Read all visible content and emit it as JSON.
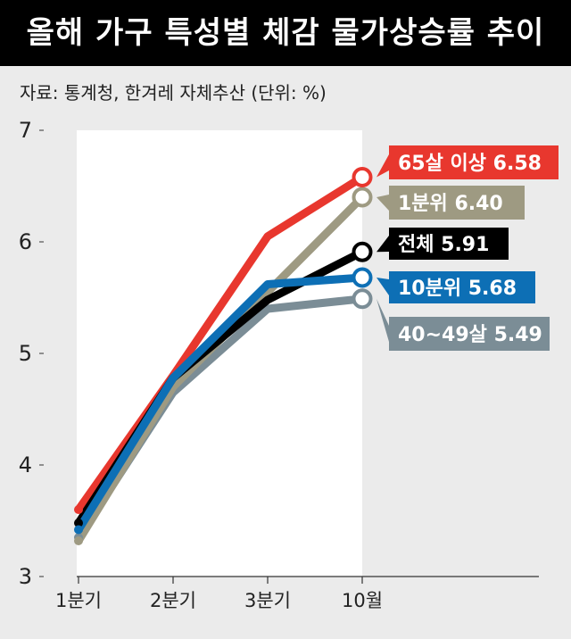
{
  "title": "올해 가구 특성별 체감 물가상승률 추이",
  "source": "자료: 통계청, 한겨레 자체추산  (단위: %)",
  "chart_data": {
    "type": "line",
    "title": "올해 가구 특성별 체감 물가상승률 추이",
    "unit": "%",
    "categories": [
      "1분기",
      "2분기",
      "3분기",
      "10월"
    ],
    "ylim": [
      3,
      7
    ],
    "yticks": [
      "3",
      "4",
      "5",
      "6",
      "7"
    ],
    "grid": false,
    "series": [
      {
        "name": "40~49살",
        "values": [
          3.35,
          4.65,
          5.4,
          5.49
        ],
        "color": "#7b8d96",
        "label": "40~49살  5.49",
        "label_text_color": "#ffffff"
      },
      {
        "name": "1분위",
        "values": [
          3.32,
          4.7,
          5.55,
          6.4
        ],
        "color": "#9e9a82",
        "label": "1분위 6.40",
        "label_text_color": "#ffffff"
      },
      {
        "name": "65살 이상",
        "values": [
          3.6,
          4.8,
          6.05,
          6.58
        ],
        "color": "#e8372e",
        "label": "65살 이상 6.58",
        "label_text_color": "#ffffff"
      },
      {
        "name": "전체",
        "values": [
          3.48,
          4.78,
          5.48,
          5.91
        ],
        "color": "#000000",
        "label": "전체 5.91",
        "label_text_color": "#ffffff"
      },
      {
        "name": "10분위",
        "values": [
          3.42,
          4.78,
          5.62,
          5.68
        ],
        "color": "#0d6fb5",
        "label": "10분위 5.68",
        "label_text_color": "#ffffff"
      }
    ]
  }
}
